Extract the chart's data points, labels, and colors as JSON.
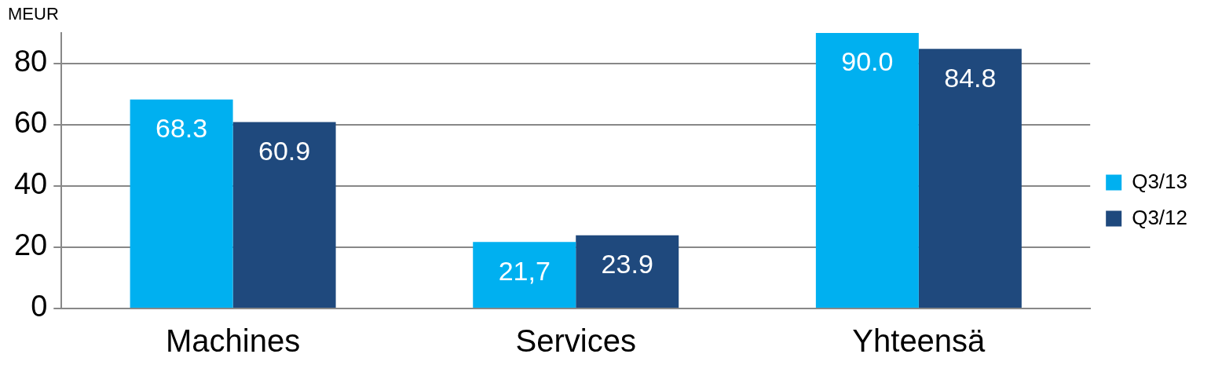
{
  "chart_data": {
    "type": "bar",
    "ylabel": "MEUR",
    "categories": [
      "Machines",
      "Services",
      "Yhteensä"
    ],
    "series": [
      {
        "name": "Q3/13",
        "color": "#00b0f0",
        "values": [
          68.3,
          21.7,
          90.0
        ],
        "value_labels": [
          "68.3",
          "21,7",
          "90.0"
        ]
      },
      {
        "name": "Q3/12",
        "color": "#1f497d",
        "values": [
          60.9,
          23.9,
          84.8
        ],
        "value_labels": [
          "60.9",
          "23.9",
          "84.8"
        ]
      }
    ],
    "ylim": [
      0,
      90
    ],
    "yticks": [
      0,
      20,
      40,
      60,
      80
    ],
    "grid": "y",
    "legend": "right"
  }
}
